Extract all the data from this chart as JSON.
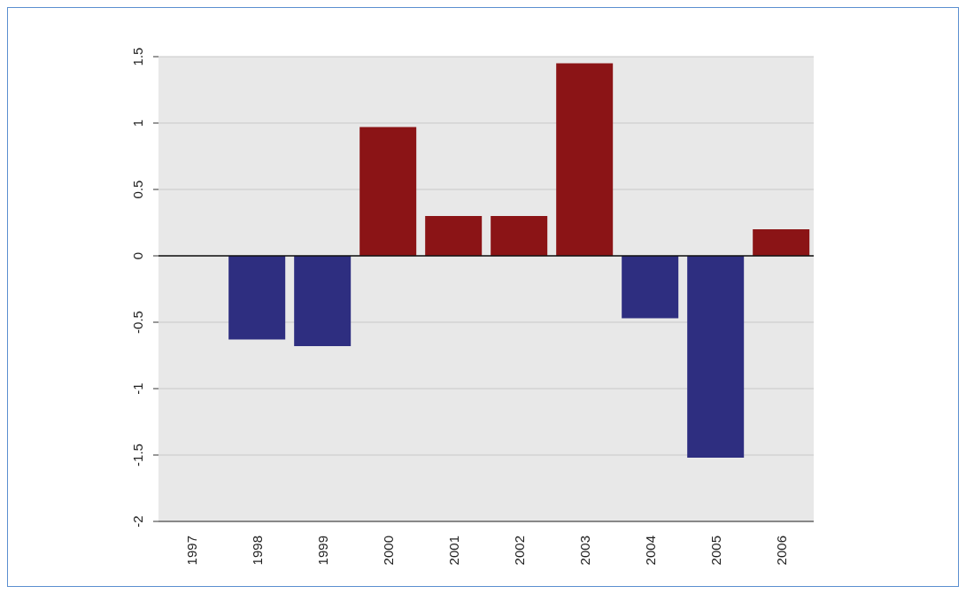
{
  "chart_data": {
    "type": "bar",
    "categories": [
      "1997",
      "1998",
      "1999",
      "2000",
      "2001",
      "2002",
      "2003",
      "2004",
      "2005",
      "2006"
    ],
    "values": [
      0,
      -0.63,
      -0.68,
      0.97,
      0.3,
      0.3,
      1.45,
      -0.47,
      -1.52,
      0.2
    ],
    "colors": [
      "#8b1416",
      "#2e2e80",
      "#2e2e80",
      "#8b1416",
      "#8b1416",
      "#8b1416",
      "#8b1416",
      "#2e2e80",
      "#2e2e80",
      "#8b1416"
    ],
    "ylim": [
      -2,
      1.5
    ],
    "yticks": [
      -2,
      -1.5,
      -1,
      -0.5,
      0,
      0.5,
      1,
      1.5
    ],
    "grid": "y"
  }
}
